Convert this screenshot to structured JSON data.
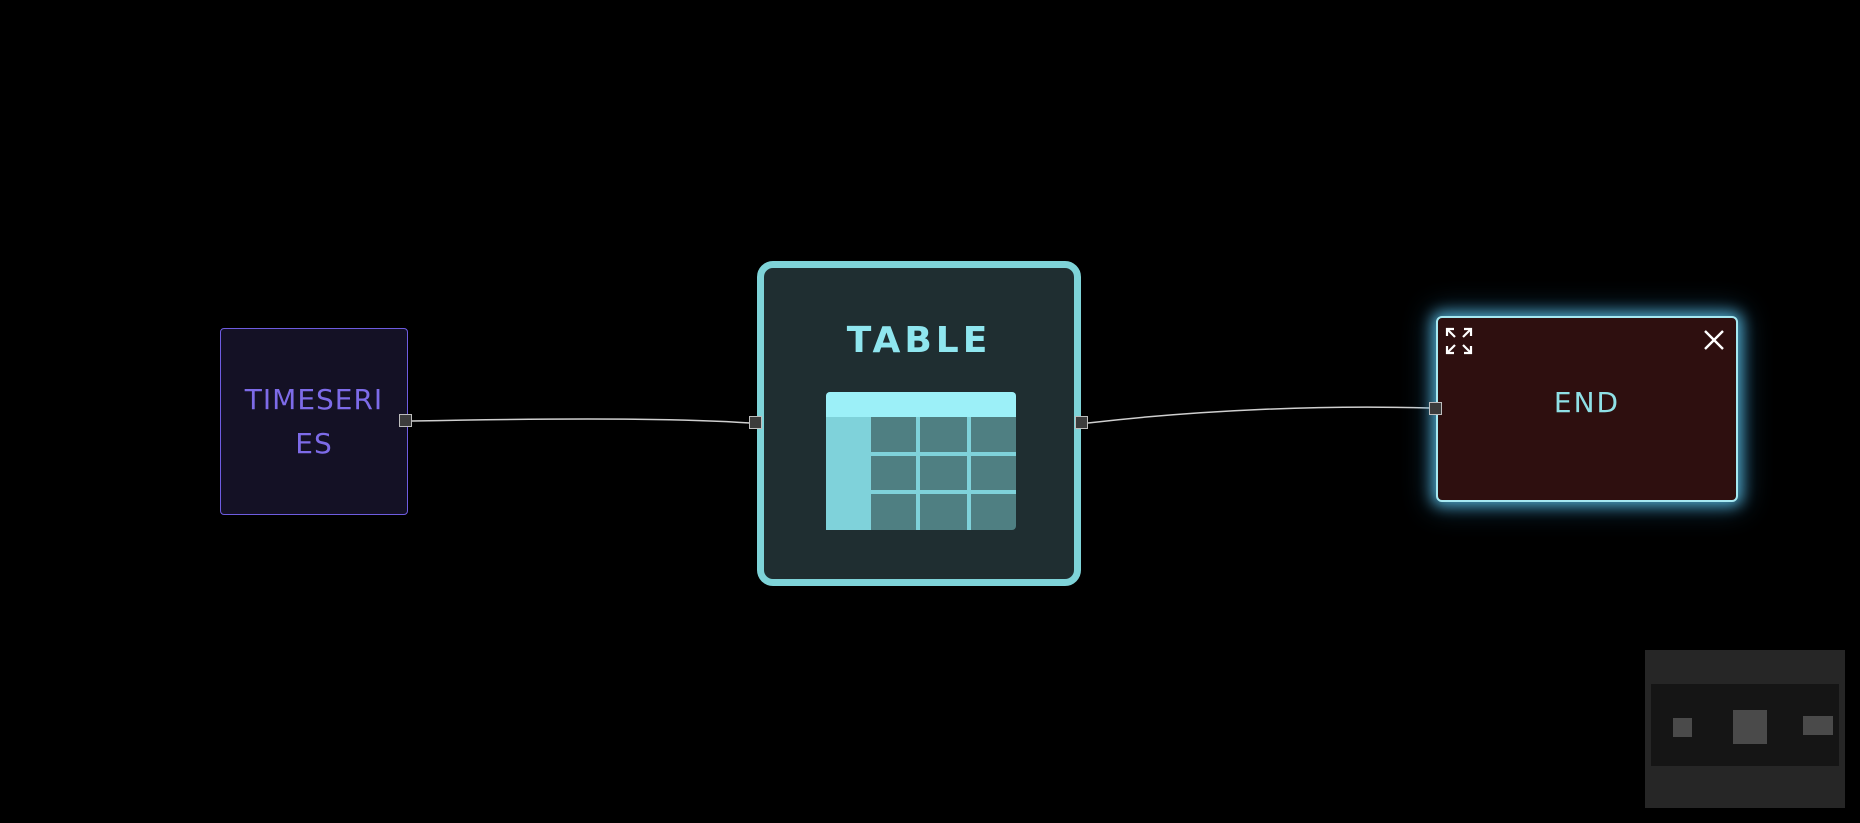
{
  "nodes": {
    "timeseries": {
      "label": "TIMESERIES",
      "accent": "#7d6be8"
    },
    "table": {
      "label": "TABLE",
      "icon": "table-icon",
      "accent": "#7ed3d8"
    },
    "end": {
      "label": "END",
      "accent": "#8fe0e6",
      "expand_icon": "expand-icon",
      "close_icon": "close-icon"
    }
  },
  "edges": [
    {
      "from": "timeseries",
      "to": "table"
    },
    {
      "from": "table",
      "to": "end"
    }
  ],
  "minimap": {
    "nodes": [
      "timeseries",
      "table",
      "end"
    ]
  }
}
